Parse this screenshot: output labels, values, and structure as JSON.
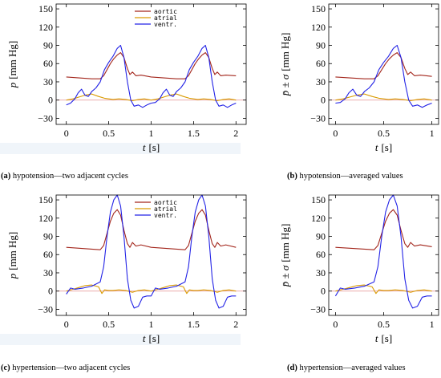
{
  "chart_data": [
    {
      "type": "line",
      "caption_tag": "(a)",
      "caption_text": " hypotension—two adjacent cycles",
      "xlabel": "t",
      "xunit": "[s]",
      "ylabel": "p",
      "yunit": "[mm Hg]",
      "xlim": [
        -0.12,
        2.12
      ],
      "ylim": [
        -40,
        158
      ],
      "xticks": [
        0,
        0.5,
        1,
        1.5,
        2
      ],
      "xtick_labels": [
        "0",
        "0.5",
        "1",
        "1.5",
        "2"
      ],
      "yticks": [
        -30,
        0,
        30,
        60,
        90,
        120,
        150
      ],
      "ytick_labels": [
        "−30",
        "0",
        "30",
        "60",
        "90",
        "120",
        "150"
      ],
      "legend": {
        "placement": "top-center",
        "entries": [
          "aortic",
          "atrial",
          "ventr."
        ]
      },
      "series": [
        {
          "name": "aortic",
          "color": "#a3261c",
          "x": [
            0,
            0.1,
            0.2,
            0.3,
            0.4,
            0.44,
            0.48,
            0.52,
            0.56,
            0.6,
            0.64,
            0.68,
            0.72,
            0.75,
            0.78,
            0.82,
            0.88,
            1.0,
            1.1,
            1.2,
            1.3,
            1.4,
            1.44,
            1.48,
            1.52,
            1.56,
            1.6,
            1.64,
            1.68,
            1.72,
            1.75,
            1.78,
            1.82,
            1.88,
            2.0
          ],
          "y": [
            38,
            37,
            36,
            35,
            35,
            40,
            50,
            60,
            68,
            74,
            78,
            70,
            52,
            42,
            46,
            40,
            41,
            38,
            37,
            36,
            35,
            35,
            40,
            50,
            60,
            68,
            74,
            78,
            70,
            52,
            42,
            46,
            40,
            41,
            40
          ]
        },
        {
          "name": "atrial",
          "color": "#d99a00",
          "x": [
            0,
            0.08,
            0.15,
            0.22,
            0.3,
            0.38,
            0.45,
            0.55,
            0.62,
            0.7,
            0.78,
            0.85,
            0.92,
            1.0,
            1.08,
            1.15,
            1.22,
            1.3,
            1.38,
            1.45,
            1.55,
            1.62,
            1.7,
            1.78,
            1.85,
            1.92,
            2.0
          ],
          "y": [
            0,
            2,
            5,
            8,
            10,
            6,
            3,
            1,
            2,
            1,
            -1,
            1,
            2,
            0,
            2,
            5,
            8,
            10,
            6,
            3,
            1,
            2,
            1,
            -1,
            1,
            2,
            0
          ]
        },
        {
          "name": "ventr.",
          "color": "#2323e6",
          "x": [
            0,
            0.05,
            0.1,
            0.14,
            0.18,
            0.22,
            0.26,
            0.3,
            0.35,
            0.4,
            0.45,
            0.5,
            0.55,
            0.6,
            0.64,
            0.68,
            0.72,
            0.76,
            0.8,
            0.85,
            0.9,
            0.95,
            1.0,
            1.05,
            1.1,
            1.14,
            1.18,
            1.22,
            1.26,
            1.3,
            1.35,
            1.4,
            1.45,
            1.5,
            1.55,
            1.6,
            1.64,
            1.68,
            1.72,
            1.76,
            1.8,
            1.85,
            1.9,
            1.95,
            2.0
          ],
          "y": [
            -8,
            -5,
            2,
            12,
            18,
            8,
            6,
            14,
            20,
            30,
            50,
            62,
            72,
            85,
            90,
            70,
            30,
            0,
            -10,
            -8,
            -12,
            -8,
            -5,
            -4,
            2,
            12,
            18,
            8,
            6,
            14,
            20,
            30,
            50,
            62,
            72,
            85,
            90,
            70,
            30,
            0,
            -10,
            -8,
            -12,
            -8,
            -5
          ]
        }
      ]
    },
    {
      "type": "line",
      "caption_tag": "(b)",
      "caption_text": " hypotension—averaged values",
      "xlabel": "t",
      "xunit": "[s]",
      "ylabel": "p̄ ± σ",
      "yunit": "[mm Hg]",
      "xlim": [
        -0.07,
        1.07
      ],
      "ylim": [
        -40,
        158
      ],
      "xticks": [
        0,
        0.5,
        1
      ],
      "xtick_labels": [
        "0",
        "0.5",
        "1"
      ],
      "yticks": [
        -30,
        0,
        30,
        60,
        90,
        120,
        150
      ],
      "ytick_labels": [
        "−30",
        "0",
        "30",
        "60",
        "90",
        "120",
        "150"
      ],
      "series": [
        {
          "name": "aortic",
          "color": "#a3261c",
          "x": [
            0,
            0.1,
            0.2,
            0.3,
            0.4,
            0.44,
            0.48,
            0.52,
            0.56,
            0.6,
            0.64,
            0.68,
            0.72,
            0.75,
            0.78,
            0.82,
            0.88,
            1.0
          ],
          "y": [
            38,
            37,
            36,
            35,
            35,
            40,
            50,
            60,
            68,
            74,
            78,
            70,
            52,
            42,
            46,
            40,
            41,
            39
          ]
        },
        {
          "name": "atrial",
          "color": "#d99a00",
          "x": [
            0,
            0.08,
            0.15,
            0.22,
            0.3,
            0.38,
            0.45,
            0.55,
            0.62,
            0.7,
            0.78,
            0.85,
            0.92,
            1.0
          ],
          "y": [
            0,
            2,
            5,
            8,
            10,
            6,
            3,
            1,
            2,
            1,
            -1,
            1,
            2,
            0
          ]
        },
        {
          "name": "ventr.",
          "color": "#2323e6",
          "x": [
            0,
            0.05,
            0.1,
            0.14,
            0.18,
            0.22,
            0.26,
            0.3,
            0.35,
            0.4,
            0.45,
            0.5,
            0.55,
            0.6,
            0.64,
            0.68,
            0.72,
            0.76,
            0.8,
            0.85,
            0.9,
            0.95,
            1.0
          ],
          "y": [
            -5,
            -4,
            2,
            12,
            18,
            8,
            6,
            14,
            20,
            30,
            50,
            62,
            72,
            85,
            90,
            70,
            30,
            0,
            -10,
            -8,
            -12,
            -8,
            -5
          ]
        }
      ]
    },
    {
      "type": "line",
      "caption_tag": "(c)",
      "caption_text": " hypertension—two adjacent cycles",
      "xlabel": "t",
      "xunit": "[s]",
      "ylabel": "p",
      "yunit": "[mm Hg]",
      "xlim": [
        -0.12,
        2.12
      ],
      "ylim": [
        -40,
        158
      ],
      "xticks": [
        0,
        0.5,
        1,
        1.5,
        2
      ],
      "xtick_labels": [
        "0",
        "0.5",
        "1",
        "1.5",
        "2"
      ],
      "yticks": [
        -30,
        0,
        30,
        60,
        90,
        120,
        150
      ],
      "ytick_labels": [
        "−30",
        "0",
        "30",
        "60",
        "90",
        "120",
        "150"
      ],
      "legend": {
        "placement": "top-center",
        "entries": [
          "aortic",
          "atrial",
          "ventr."
        ]
      },
      "series": [
        {
          "name": "aortic",
          "color": "#a3261c",
          "x": [
            0,
            0.1,
            0.2,
            0.3,
            0.4,
            0.44,
            0.48,
            0.52,
            0.56,
            0.6,
            0.64,
            0.68,
            0.72,
            0.75,
            0.78,
            0.82,
            0.88,
            1.0,
            1.1,
            1.2,
            1.3,
            1.4,
            1.44,
            1.48,
            1.52,
            1.56,
            1.6,
            1.64,
            1.68,
            1.72,
            1.75,
            1.78,
            1.82,
            1.88,
            2.0
          ],
          "y": [
            72,
            71,
            70,
            69,
            68,
            75,
            95,
            115,
            128,
            134,
            125,
            100,
            78,
            72,
            80,
            74,
            76,
            72,
            71,
            70,
            69,
            68,
            75,
            95,
            115,
            128,
            134,
            125,
            100,
            78,
            72,
            80,
            74,
            76,
            72
          ]
        },
        {
          "name": "atrial",
          "color": "#d99a00",
          "x": [
            0,
            0.08,
            0.15,
            0.22,
            0.3,
            0.38,
            0.42,
            0.45,
            0.5,
            0.55,
            0.62,
            0.7,
            0.78,
            0.85,
            0.92,
            1.0,
            1.08,
            1.15,
            1.22,
            1.3,
            1.38,
            1.42,
            1.45,
            1.5,
            1.55,
            1.62,
            1.7,
            1.78,
            1.85,
            1.92,
            2.0
          ],
          "y": [
            0,
            3,
            6,
            9,
            10,
            7,
            -4,
            2,
            1,
            1,
            2,
            1,
            -2,
            1,
            2,
            0,
            3,
            6,
            9,
            10,
            7,
            -4,
            2,
            1,
            1,
            2,
            1,
            -2,
            1,
            2,
            0
          ]
        },
        {
          "name": "ventr.",
          "color": "#2323e6",
          "x": [
            0,
            0.05,
            0.1,
            0.15,
            0.2,
            0.3,
            0.4,
            0.44,
            0.48,
            0.52,
            0.56,
            0.6,
            0.64,
            0.68,
            0.72,
            0.76,
            0.8,
            0.85,
            0.9,
            0.95,
            1.0,
            1.05,
            1.1,
            1.15,
            1.2,
            1.3,
            1.4,
            1.44,
            1.48,
            1.52,
            1.56,
            1.6,
            1.64,
            1.68,
            1.72,
            1.76,
            1.8,
            1.85,
            1.9,
            1.95,
            2.0
          ],
          "y": [
            -5,
            5,
            3,
            4,
            5,
            8,
            15,
            40,
            90,
            130,
            150,
            158,
            140,
            90,
            20,
            -15,
            -28,
            -25,
            -10,
            -8,
            -8,
            5,
            3,
            4,
            5,
            8,
            15,
            40,
            90,
            130,
            150,
            158,
            140,
            90,
            20,
            -15,
            -28,
            -25,
            -10,
            -8,
            -8
          ]
        }
      ]
    },
    {
      "type": "line",
      "caption_tag": "(d)",
      "caption_text": " hypertension—averaged values",
      "xlabel": "t",
      "xunit": "[s]",
      "ylabel": "p̄ ± σ",
      "yunit": "[mm Hg]",
      "xlim": [
        -0.07,
        1.07
      ],
      "ylim": [
        -40,
        158
      ],
      "xticks": [
        0,
        0.5,
        1
      ],
      "xtick_labels": [
        "0",
        "0.5",
        "1"
      ],
      "yticks": [
        -30,
        0,
        30,
        60,
        90,
        120,
        150
      ],
      "ytick_labels": [
        "−30",
        "0",
        "30",
        "60",
        "90",
        "120",
        "150"
      ],
      "series": [
        {
          "name": "aortic",
          "color": "#a3261c",
          "x": [
            0,
            0.1,
            0.2,
            0.3,
            0.4,
            0.44,
            0.48,
            0.52,
            0.56,
            0.6,
            0.64,
            0.68,
            0.72,
            0.75,
            0.78,
            0.82,
            0.88,
            1.0
          ],
          "y": [
            72,
            71,
            70,
            69,
            68,
            75,
            95,
            115,
            128,
            134,
            125,
            100,
            78,
            72,
            80,
            74,
            76,
            73
          ]
        },
        {
          "name": "atrial",
          "color": "#d99a00",
          "x": [
            0,
            0.08,
            0.15,
            0.22,
            0.3,
            0.38,
            0.42,
            0.45,
            0.5,
            0.55,
            0.62,
            0.7,
            0.78,
            0.85,
            0.92,
            1.0
          ],
          "y": [
            0,
            3,
            6,
            9,
            10,
            7,
            -4,
            2,
            1,
            1,
            2,
            1,
            -2,
            1,
            2,
            0
          ]
        },
        {
          "name": "ventr.",
          "color": "#2323e6",
          "x": [
            0,
            0.05,
            0.1,
            0.15,
            0.2,
            0.3,
            0.4,
            0.44,
            0.48,
            0.52,
            0.56,
            0.6,
            0.64,
            0.68,
            0.72,
            0.76,
            0.8,
            0.85,
            0.9,
            0.95,
            1.0
          ],
          "y": [
            -8,
            5,
            3,
            4,
            5,
            8,
            15,
            40,
            90,
            130,
            150,
            158,
            140,
            90,
            20,
            -15,
            -28,
            -25,
            -10,
            -8,
            -8
          ]
        }
      ]
    }
  ]
}
